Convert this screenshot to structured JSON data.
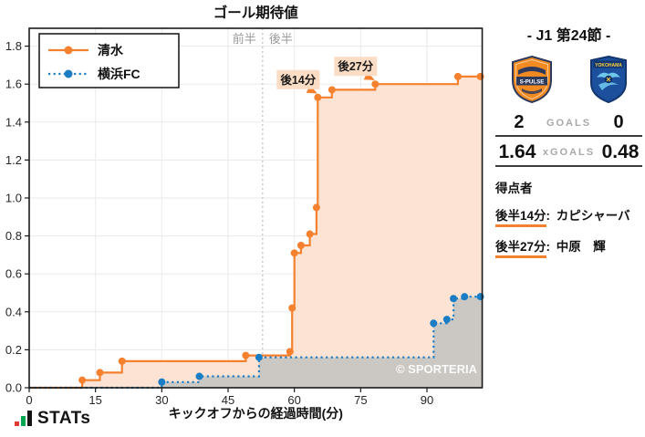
{
  "chart_data": {
    "type": "line",
    "subtype": "step-cumulative-xg",
    "title": "ゴール期待値",
    "xlabel": "キックオフからの経過時間(分)",
    "x_ticks": [
      0,
      15,
      30,
      45,
      60,
      75,
      90
    ],
    "y_ticks": [
      0.0,
      0.2,
      0.4,
      0.6,
      0.8,
      1.0,
      1.2,
      1.4,
      1.6,
      1.8
    ],
    "xlim": [
      0,
      102.5
    ],
    "ylim": [
      0,
      1.89
    ],
    "grid": true,
    "legend_position": "top-left",
    "halftime_x": 52.8,
    "period_labels": {
      "first": "前半",
      "second": "後半"
    },
    "watermark": "© SPORTERIA",
    "series": [
      {
        "name": "清水",
        "color": "#f5812f",
        "fill_color": "#fce3d3",
        "line_style": "solid",
        "final_value": 1.64,
        "points": [
          [
            0,
            0
          ],
          [
            12,
            0.04
          ],
          [
            16,
            0.08
          ],
          [
            21,
            0.14
          ],
          [
            49,
            0.17
          ],
          [
            59,
            0.19
          ],
          [
            59.5,
            0.42
          ],
          [
            60,
            0.71
          ],
          [
            61.5,
            0.75
          ],
          [
            63.5,
            0.81
          ],
          [
            65,
            0.95
          ],
          [
            65.3,
            1.53
          ],
          [
            68.5,
            1.57
          ],
          [
            78.3,
            1.6
          ],
          [
            97,
            1.64
          ]
        ]
      },
      {
        "name": "横浜FC",
        "color": "#1b7ec5",
        "fill_color": "#cbc7c3",
        "line_style": "dotted",
        "final_value": 0.48,
        "points": [
          [
            0,
            0
          ],
          [
            30,
            0.03
          ],
          [
            38.5,
            0.06
          ],
          [
            52,
            0.16
          ],
          [
            91.5,
            0.34
          ],
          [
            94.5,
            0.36
          ],
          [
            96,
            0.47
          ],
          [
            98.5,
            0.48
          ]
        ]
      }
    ],
    "annotations": [
      {
        "label": "後14分",
        "x": 65.3,
        "y": 1.53
      },
      {
        "label": "後27分",
        "x": 78.3,
        "y": 1.6
      }
    ]
  },
  "panel": {
    "title": "- J1 第24節 -",
    "home": {
      "logo_text": "S-PULSE"
    },
    "away": {
      "logo_text": "YOKOHAMA"
    },
    "goals": {
      "home": "2",
      "label": "GOALS",
      "away": "0"
    },
    "xgoals": {
      "home": "1.64",
      "label": "xGOALS",
      "away": "0.48"
    },
    "scorers": {
      "heading": "得点者",
      "colon": ":",
      "items": [
        {
          "time": "後半14分",
          "name": "カピシャーバ"
        },
        {
          "time": "後半27分",
          "name": "中原　輝"
        }
      ]
    }
  },
  "footer": {
    "brand": "STATs"
  }
}
